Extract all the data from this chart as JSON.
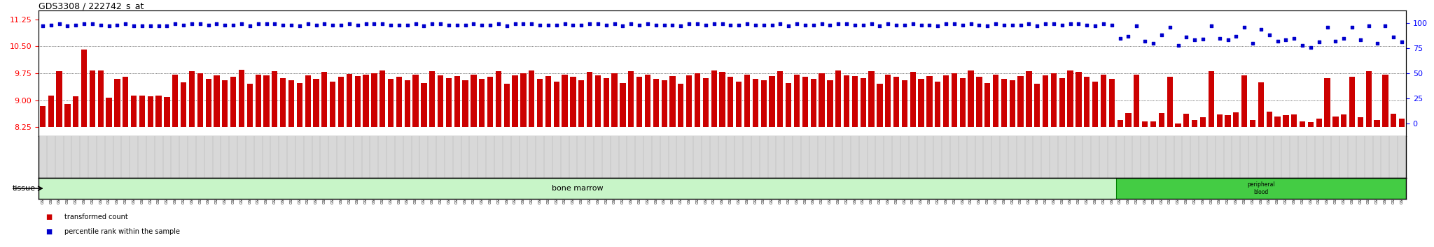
{
  "title": "GDS3308 / 222742_s_at",
  "figsize": [
    20.48,
    3.54
  ],
  "dpi": 100,
  "ylim_left": [
    8.0,
    11.5
  ],
  "ylim_right": [
    -12.5,
    112.5
  ],
  "yticks_left": [
    8.25,
    9.0,
    9.75,
    10.5,
    11.25
  ],
  "yticks_right": [
    0,
    25,
    50,
    75,
    100
  ],
  "bar_color": "#cc0000",
  "dot_color": "#0000cc",
  "bar_bottom": 8.25,
  "tissue_bar_color": "#c8f5c8",
  "tissue_label": "bone marrow",
  "tissue_label2": "peripheral\nblood",
  "sample_labels": [
    "GSM311761",
    "GSM311762",
    "GSM311763",
    "GSM311764",
    "GSM311765",
    "GSM311766",
    "GSM311767",
    "GSM311768",
    "GSM311769",
    "GSM311770",
    "GSM311771",
    "GSM311772",
    "GSM311773",
    "GSM311774",
    "GSM311775",
    "GSM311776",
    "GSM311777",
    "GSM311778",
    "GSM311779",
    "GSM311780",
    "GSM311781",
    "GSM311782",
    "GSM311783",
    "GSM311784",
    "GSM311785",
    "GSM311786",
    "GSM311787",
    "GSM311788",
    "GSM311789",
    "GSM311790",
    "GSM311791",
    "GSM311792",
    "GSM311793",
    "GSM311794",
    "GSM311795",
    "GSM311796",
    "GSM311797",
    "GSM311798",
    "GSM311799",
    "GSM311800",
    "GSM311801",
    "GSM311802",
    "GSM311803",
    "GSM311804",
    "GSM311805",
    "GSM311806",
    "GSM311807",
    "GSM311808",
    "GSM311809",
    "GSM311810",
    "GSM311811",
    "GSM311812",
    "GSM311813",
    "GSM311814",
    "GSM311815",
    "GSM311816",
    "GSM311817",
    "GSM311818",
    "GSM311819",
    "GSM311820",
    "GSM311821",
    "GSM311822",
    "GSM311823",
    "GSM311824",
    "GSM311825",
    "GSM311826",
    "GSM311827",
    "GSM311828",
    "GSM311829",
    "GSM311830",
    "GSM311831",
    "GSM311832",
    "GSM311833",
    "GSM311834",
    "GSM311835",
    "GSM311836",
    "GSM311837",
    "GSM311838",
    "GSM311839",
    "GSM311840",
    "GSM311841",
    "GSM311842",
    "GSM311843",
    "GSM311844",
    "GSM311845",
    "GSM311846",
    "GSM311847",
    "GSM311848",
    "GSM311849",
    "GSM311850",
    "GSM311851",
    "GSM311852",
    "GSM311853",
    "GSM311854",
    "GSM311855",
    "GSM311856",
    "GSM311857",
    "GSM311858",
    "GSM311859",
    "GSM311860",
    "GSM311861",
    "GSM311862",
    "GSM311863",
    "GSM311864",
    "GSM311865",
    "GSM311866",
    "GSM311867",
    "GSM311868",
    "GSM311869",
    "GSM311870",
    "GSM311871",
    "GSM311872",
    "GSM311873",
    "GSM311874",
    "GSM311875",
    "GSM311876",
    "GSM311877",
    "GSM311878",
    "GSM311879",
    "GSM311880",
    "GSM311881",
    "GSM311882",
    "GSM311883",
    "GSM311884",
    "GSM311885",
    "GSM311886",
    "GSM311887",
    "GSM311888",
    "GSM311889",
    "GSM311890",
    "GSM311891",
    "GSM311892",
    "GSM311893",
    "GSM311894",
    "GSM311895",
    "GSM311896",
    "GSM311897",
    "GSM311898",
    "GSM311899",
    "GSM311900",
    "GSM311901",
    "GSM311902",
    "GSM311903",
    "GSM311904",
    "GSM311905",
    "GSM311906",
    "GSM311907",
    "GSM311908",
    "GSM311909",
    "GSM311910",
    "GSM311911",
    "GSM311912",
    "GSM311913",
    "GSM311914",
    "GSM311915",
    "GSM311916",
    "GSM311917",
    "GSM311918",
    "GSM311919",
    "GSM311920",
    "GSM311921",
    "GSM311922",
    "GSM311923",
    "GSM311831",
    "GSM311878"
  ],
  "bar_values": [
    8.84,
    9.12,
    9.81,
    8.9,
    9.1,
    10.42,
    9.83,
    9.82,
    9.07,
    9.6,
    9.65,
    9.12,
    9.12,
    9.1,
    9.12,
    9.08,
    9.72,
    9.5,
    9.8,
    9.75,
    9.6,
    9.7,
    9.55,
    9.65,
    9.85,
    9.45,
    9.72,
    9.7,
    9.8,
    9.62,
    9.55,
    9.48,
    9.7,
    9.6,
    9.78,
    9.52,
    9.65,
    9.73,
    9.68,
    9.72,
    9.75,
    9.82,
    9.6,
    9.65,
    9.55,
    9.72,
    9.48,
    9.8,
    9.7,
    9.62,
    9.68,
    9.55,
    9.72,
    9.6,
    9.65,
    9.8,
    9.45,
    9.7,
    9.75,
    9.82,
    9.6,
    9.68,
    9.52,
    9.72,
    9.65,
    9.55,
    9.78,
    9.7,
    9.62,
    9.75,
    9.48,
    9.8,
    9.65,
    9.72,
    9.6,
    9.55,
    9.68,
    9.45,
    9.7,
    9.75,
    9.62,
    9.82,
    9.78,
    9.65,
    9.52,
    9.72,
    9.6,
    9.55,
    9.68,
    9.8,
    9.48,
    9.72,
    9.65,
    9.6,
    9.75,
    9.55,
    9.82,
    9.7,
    9.68,
    9.62,
    9.8,
    9.45,
    9.72,
    9.65,
    9.55,
    9.78,
    9.6,
    9.68,
    9.52,
    9.7,
    9.75,
    9.62,
    9.82,
    9.65,
    9.48,
    9.72,
    9.6,
    9.55,
    9.68,
    9.8,
    9.45,
    9.7,
    9.75,
    9.62,
    9.82,
    9.78,
    9.65,
    9.52,
    9.72,
    9.6,
    8.44,
    8.65,
    9.72,
    8.4,
    8.4,
    8.65,
    9.65,
    8.35,
    8.62,
    8.44,
    8.52,
    9.8,
    8.6,
    8.58,
    8.66,
    9.7,
    8.45,
    9.5,
    8.68,
    8.55,
    8.58,
    8.6,
    8.4,
    8.38,
    8.48,
    9.62,
    8.55,
    8.6,
    9.65,
    8.52,
    9.8,
    8.45,
    9.72,
    8.62,
    8.48,
    9.58
  ],
  "dot_values_pct": [
    97,
    98,
    99,
    97,
    98,
    99,
    99,
    98,
    97,
    98,
    99,
    97,
    97,
    97,
    97,
    97,
    99,
    98,
    99,
    99,
    98,
    99,
    98,
    98,
    99,
    97,
    99,
    99,
    99,
    98,
    98,
    97,
    99,
    98,
    99,
    98,
    98,
    99,
    98,
    99,
    99,
    99,
    98,
    98,
    98,
    99,
    97,
    99,
    99,
    98,
    98,
    98,
    99,
    98,
    98,
    99,
    97,
    99,
    99,
    99,
    98,
    98,
    98,
    99,
    98,
    98,
    99,
    99,
    98,
    99,
    97,
    99,
    98,
    99,
    98,
    98,
    98,
    97,
    99,
    99,
    98,
    99,
    99,
    98,
    98,
    99,
    98,
    98,
    98,
    99,
    97,
    99,
    98,
    98,
    99,
    98,
    99,
    99,
    98,
    98,
    99,
    97,
    99,
    98,
    98,
    99,
    98,
    98,
    97,
    99,
    99,
    98,
    99,
    98,
    97,
    99,
    98,
    98,
    98,
    99,
    97,
    99,
    99,
    98,
    99,
    99,
    98,
    97,
    99,
    98,
    85,
    87,
    97,
    82,
    80,
    88,
    96,
    78,
    86,
    83,
    84,
    97,
    85,
    83,
    87,
    96,
    80,
    94,
    88,
    82,
    83,
    85,
    78,
    76,
    81,
    96,
    82,
    85,
    96,
    83,
    97,
    80,
    97,
    86,
    81,
    95
  ],
  "n_bone_marrow": 130,
  "n_total": 166,
  "label_box_color": "#d8d8d8",
  "label_box_edge": "#888888",
  "pb_box_color": "#44cc44"
}
